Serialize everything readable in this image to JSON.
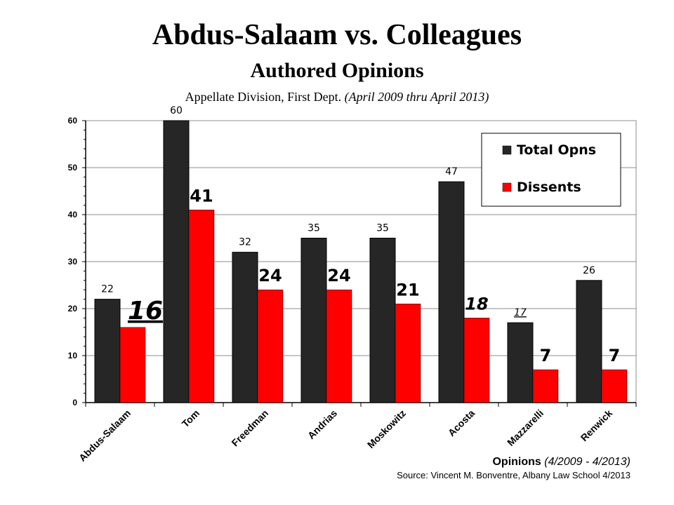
{
  "header": {
    "title": "Abdus-Salaam vs. Colleagues",
    "subtitle": "Authored Opinions",
    "caption_main": "Appellate Division, First Dept.",
    "caption_range": "(April 2009 thru April 2013)"
  },
  "footer": {
    "label": "Opinions",
    "period": "(4/2009 - 4/2013)",
    "source": "Source: Vincent M. Bonventre, Albany Law School  4/2013"
  },
  "colors": {
    "total": "#262626",
    "dissents": "#ff0000",
    "grid": "#8c8c8c",
    "axis": "#000000"
  },
  "chart_data": {
    "type": "bar",
    "categories": [
      "Abdus-Salaam",
      "Tom",
      "Freedman",
      "Andrias",
      "Moskowitz",
      "Acosta",
      "Mazzarelli",
      "Renwick"
    ],
    "series": [
      {
        "name": "Total Opns",
        "values": [
          22,
          60,
          32,
          35,
          35,
          47,
          17,
          26
        ]
      },
      {
        "name": "Dissents",
        "values": [
          16,
          41,
          24,
          24,
          21,
          18,
          7,
          7
        ]
      }
    ],
    "ylim": [
      0,
      60
    ],
    "yticks": [
      0,
      10,
      20,
      30,
      40,
      50,
      60
    ],
    "grid": true,
    "legend_position": "top-right"
  }
}
